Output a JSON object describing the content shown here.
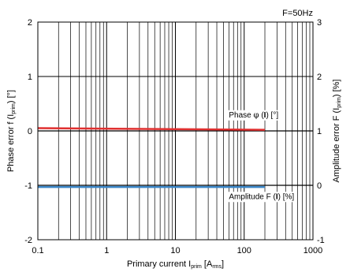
{
  "chart_data": {
    "type": "line",
    "frequency_label": "F=50Hz",
    "x_axis": {
      "scale": "log",
      "range": [
        0.1,
        1000
      ],
      "ticks": [
        0.1,
        1,
        10,
        100,
        1000
      ],
      "tick_labels": [
        "0.1",
        "1",
        "10",
        "100",
        "1000"
      ],
      "label_main": "Primary current I",
      "label_sub": "prim",
      "label_unit_open": " [A",
      "label_unit_sub": "rms",
      "label_unit_close": "]"
    },
    "y_left": {
      "range": [
        -2,
        2
      ],
      "ticks": [
        -2,
        -1,
        0,
        1,
        2
      ],
      "tick_labels": [
        "-2",
        "-1",
        "0",
        "1",
        "2"
      ],
      "label_main": "Phase error f (I",
      "label_sub": "prim",
      "label_close": ") [°]"
    },
    "y_right": {
      "range": [
        -1,
        3
      ],
      "ticks": [
        -1,
        0,
        1,
        2,
        3
      ],
      "tick_labels": [
        "-1",
        "0",
        "1",
        "2",
        "3"
      ],
      "label_main": "Amplitude error F (I",
      "label_sub": "prim",
      "label_close": ") [%]"
    },
    "grid": true,
    "series": [
      {
        "name": "Phase φ (I) [°]",
        "name_parts": [
          "Phase ",
          "φ",
          " (",
          "I",
          ") [°]"
        ],
        "axis": "left",
        "color": "#e03030",
        "x": [
          0.1,
          200
        ],
        "y": [
          0.05,
          0.02
        ]
      },
      {
        "name": "Amplitude F (I) [%]",
        "name_parts": [
          "Amplitude F (",
          "I",
          ") [%]"
        ],
        "axis": "right",
        "color": "#3a86c8",
        "x": [
          0.1,
          200
        ],
        "y": [
          -0.03,
          -0.03
        ]
      }
    ],
    "reference_lines": [
      {
        "axis": "left",
        "y": -1,
        "color": "#000000"
      },
      {
        "axis": "left",
        "y": 0,
        "color": "#000000"
      }
    ]
  }
}
